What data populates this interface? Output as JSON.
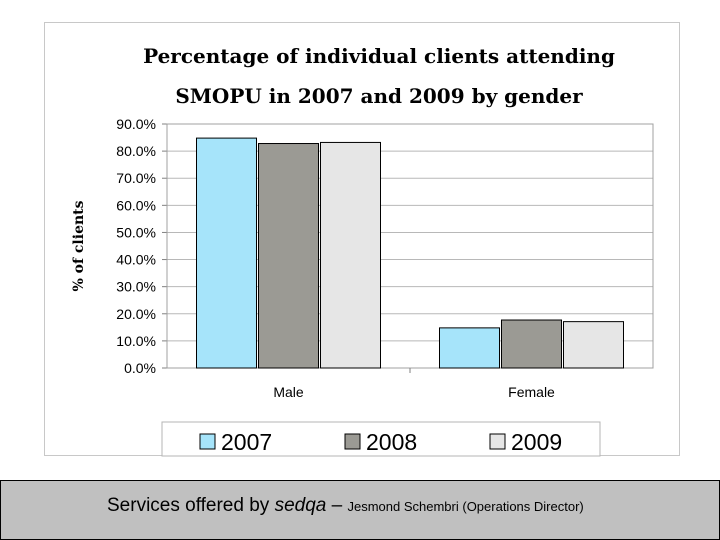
{
  "chart_data": {
    "type": "bar",
    "title_lines": [
      "Percentage of individual clients attending",
      "SMOPU in 2007 and 2009 by gender"
    ],
    "xlabel": "",
    "ylabel": "% of clients",
    "categories": [
      "Male",
      "Female"
    ],
    "series": [
      {
        "name": "2007",
        "values": [
          84.8,
          14.8
        ],
        "color": "#a6e4fa"
      },
      {
        "name": "2008",
        "values": [
          82.8,
          17.7
        ],
        "color": "#9b9a94"
      },
      {
        "name": "2009",
        "values": [
          83.2,
          17.1
        ],
        "color": "#e6e6e6"
      }
    ],
    "ylim": [
      0,
      90
    ],
    "yticks": [
      0,
      10,
      20,
      30,
      40,
      50,
      60,
      70,
      80,
      90
    ],
    "ytick_labels": [
      "0.0%",
      "10.0%",
      "20.0%",
      "30.0%",
      "40.0%",
      "50.0%",
      "60.0%",
      "70.0%",
      "80.0%",
      "90.0%"
    ],
    "grid": true,
    "legend_position": "bottom"
  },
  "footer": {
    "text_main": "Services offered by ",
    "text_italic": "sedqa",
    "text_dash": " – ",
    "text_small": "Jesmond Schembri (Operations Director)"
  }
}
